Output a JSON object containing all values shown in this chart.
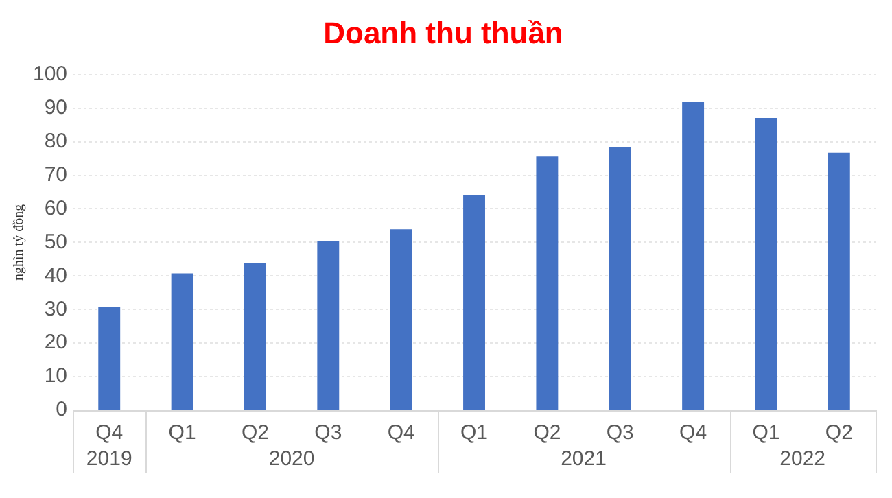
{
  "chart_data": {
    "type": "bar",
    "title": "Doanh thu thuần",
    "ylabel": "nghìn tỷ đồng",
    "categories": [
      "Q4",
      "Q1",
      "Q2",
      "Q3",
      "Q4",
      "Q1",
      "Q2",
      "Q3",
      "Q4",
      "Q1",
      "Q2"
    ],
    "values": [
      30.8,
      40.8,
      43.9,
      50.3,
      53.9,
      64,
      75.6,
      78.4,
      91.9,
      87.1,
      76.7
    ],
    "color": "#4472c4",
    "ylim": [
      0,
      100
    ],
    "yticks": [
      0,
      10,
      20,
      30,
      40,
      50,
      60,
      70,
      80,
      90,
      100
    ],
    "grid": "y",
    "legend": false,
    "annotations": [
      "2019",
      "2020",
      "2021",
      "2022"
    ]
  }
}
